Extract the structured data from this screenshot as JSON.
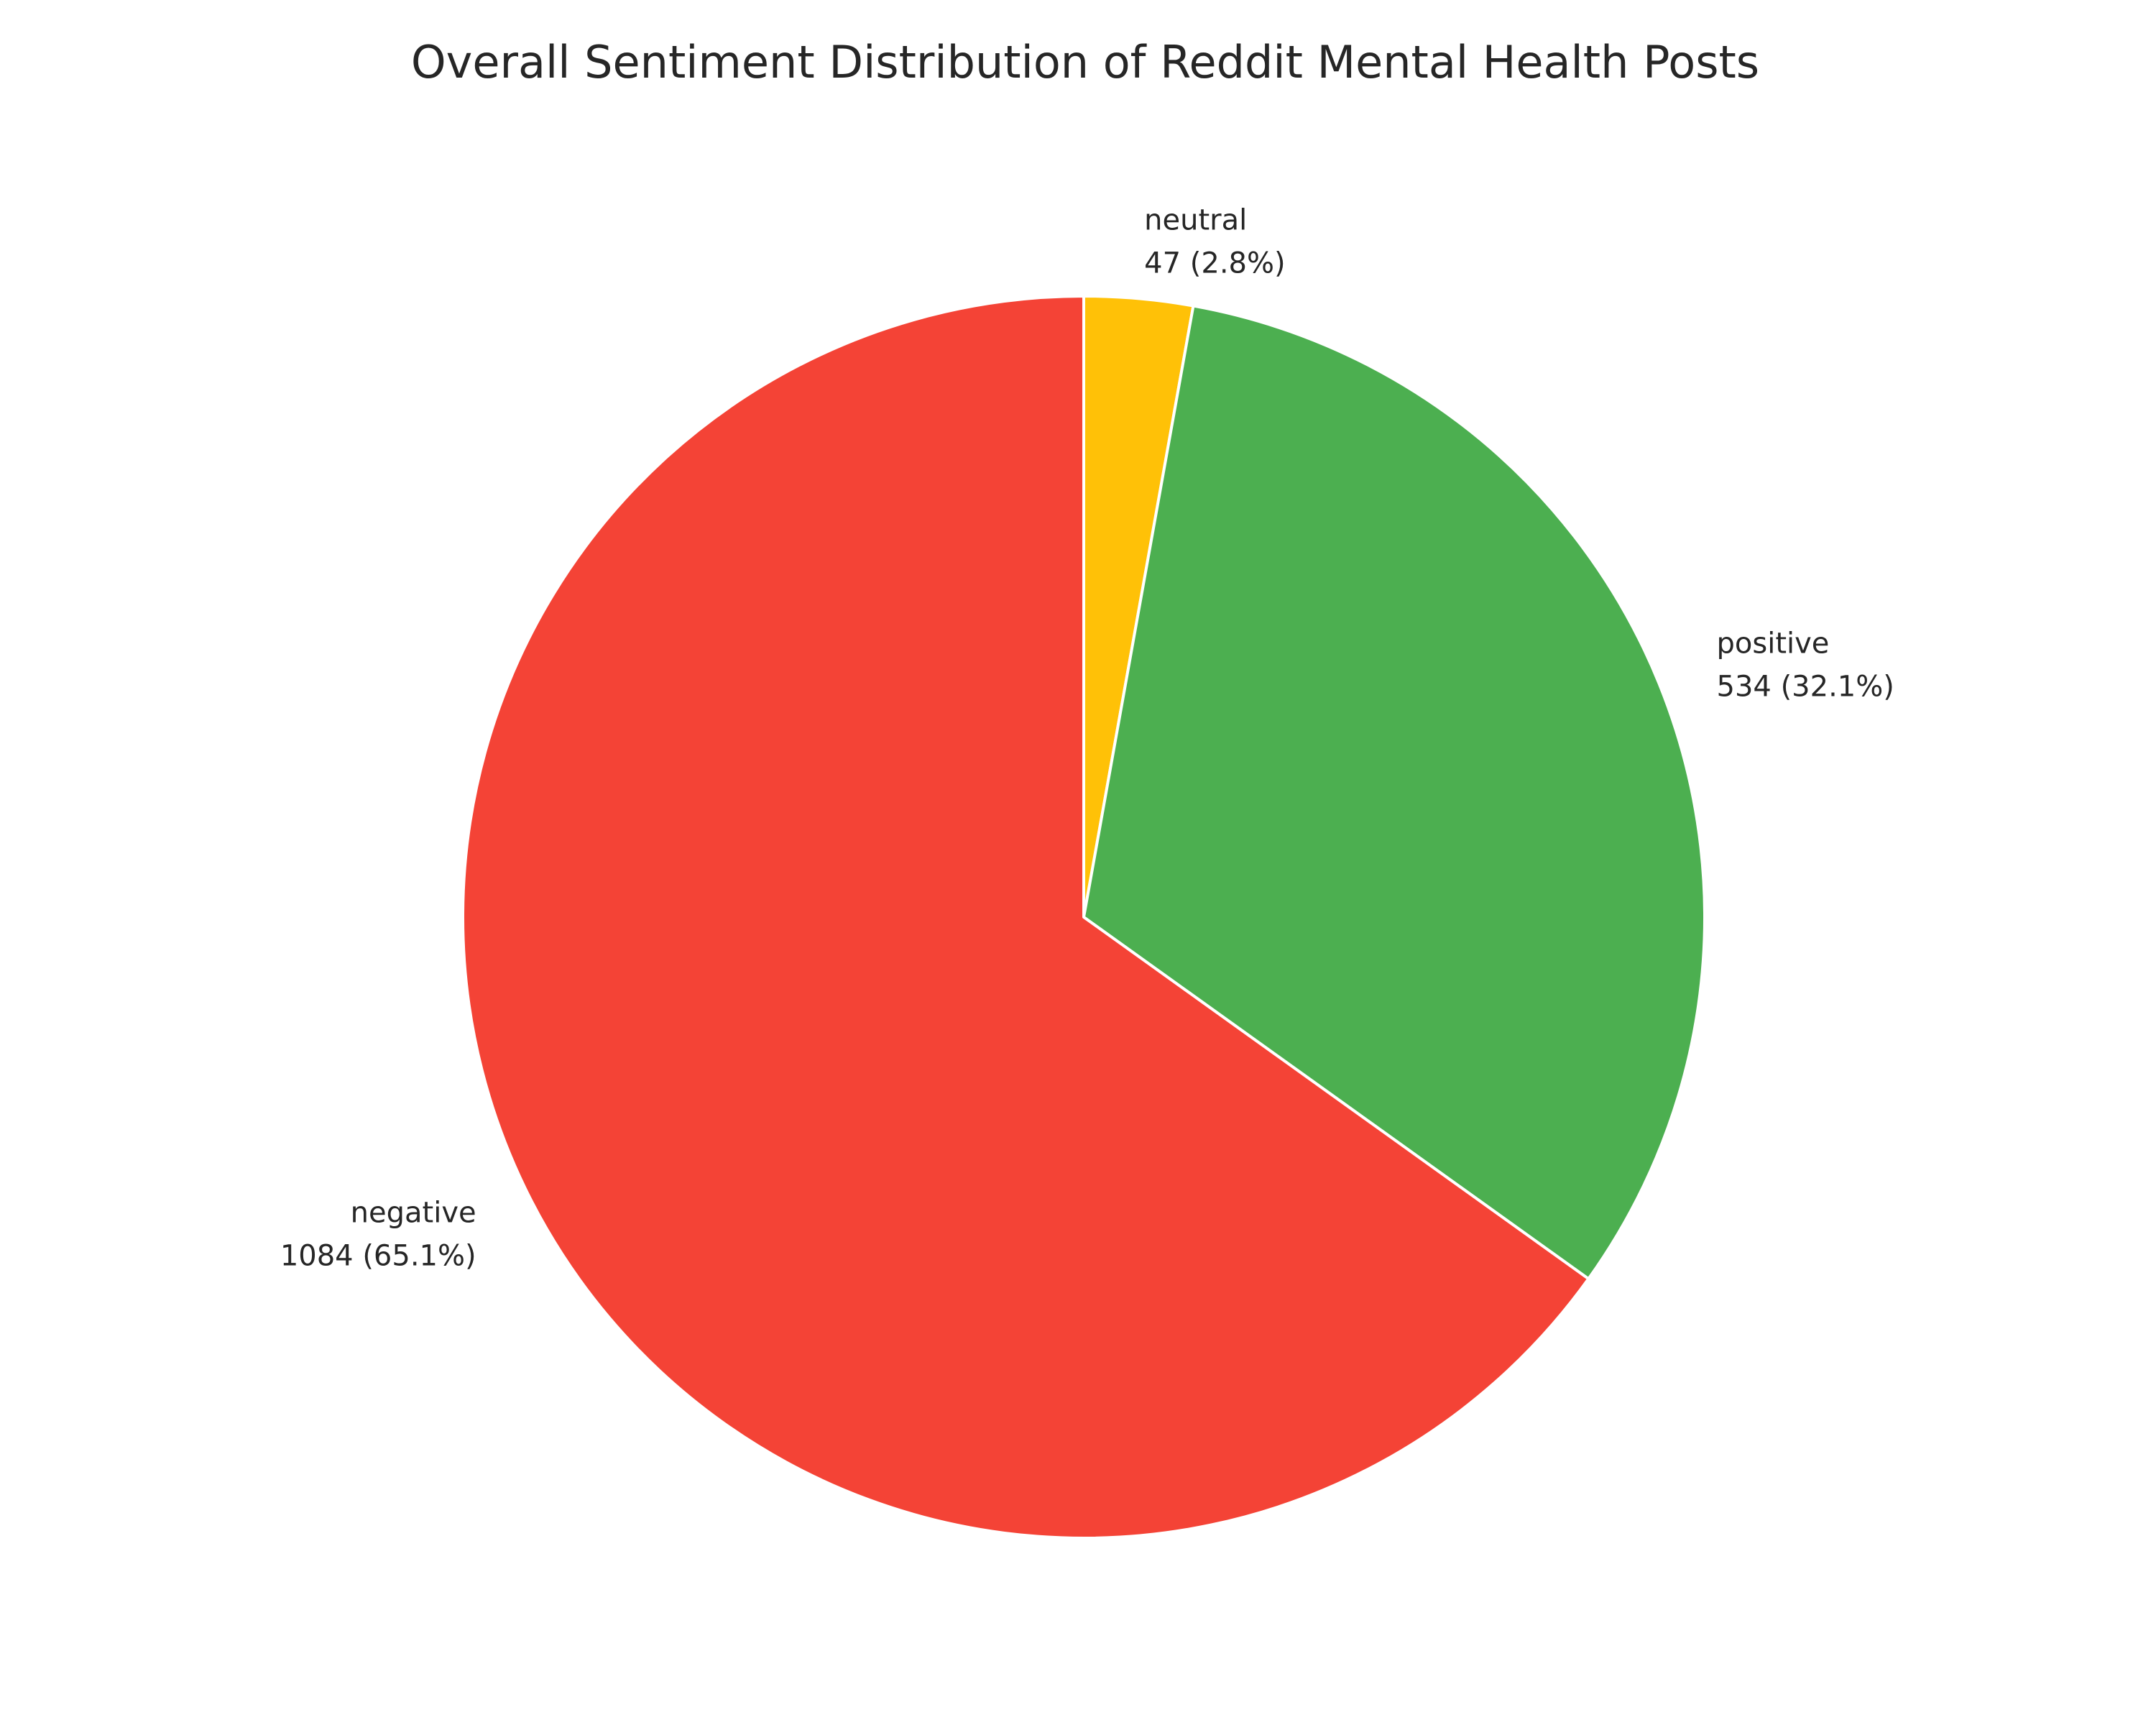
{
  "chart_data": {
    "type": "pie",
    "title": "Overall Sentiment Distribution of Reddit Mental Health Posts",
    "slices": [
      {
        "label": "neutral",
        "value": 47,
        "percent": "2.8%",
        "text": "47 (2.8%)",
        "color": "#FFC107"
      },
      {
        "label": "positive",
        "value": 534,
        "percent": "32.1%",
        "text": "534 (32.1%)",
        "color": "#4CAF50"
      },
      {
        "label": "negative",
        "value": 1084,
        "percent": "65.1%",
        "text": "1084 (65.1%)",
        "color": "#F44336"
      }
    ],
    "start_angle_deg": 90,
    "direction": "clockwise",
    "slice_edge_color": "#FFFFFF"
  }
}
